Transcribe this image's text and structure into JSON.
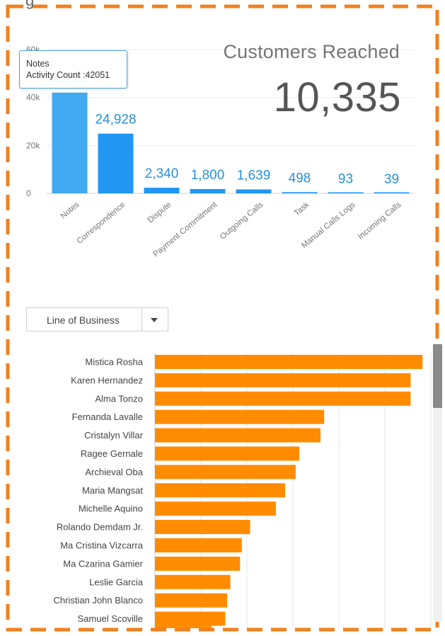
{
  "header": {
    "title_fragment": "g"
  },
  "kpi": {
    "label": "Customers Reached",
    "value": "10,335"
  },
  "tooltip": {
    "line1": "Notes",
    "line2": "Activity Count :42051"
  },
  "dropdown": {
    "label": "Line of Business"
  },
  "colors": {
    "bar_light": "#42aaf0",
    "bar_dark": "#2196f3",
    "value_text": "#2a90d8",
    "hbar": "#ff8c00",
    "frame": "#f0811f"
  },
  "chart_data": [
    {
      "type": "bar",
      "title": "",
      "categories": [
        "Notes",
        "Correspondence",
        "Dispute",
        "Payment Commitment",
        "Outgoing Calls",
        "Task",
        "Manual Calls Logs",
        "Incoming Calls"
      ],
      "values": [
        42051,
        24928,
        2340,
        1800,
        1639,
        498,
        93,
        39
      ],
      "value_labels": [
        "42,051",
        "24,928",
        "2,340",
        "1,800",
        "1,639",
        "498",
        "93",
        "39"
      ],
      "ylim": [
        0,
        60000
      ],
      "yticks": [
        0,
        20000,
        40000,
        60000
      ],
      "ytick_labels": [
        "0",
        "20k",
        "40k",
        "60k"
      ],
      "grid": true
    },
    {
      "type": "bar",
      "orientation": "horizontal",
      "title": "",
      "categories": [
        "Mistica Rosha",
        "Karen Hernandez",
        "Alma Tonzo",
        "Fernanda Lavalle",
        "Cristalyn Villar",
        "Ragee Gernale",
        "Archieval Oba",
        "Maria Mangsat",
        "Michelle Aquino",
        "Rolando Demdam Jr.",
        "Ma Cristina Vizcarra",
        "Ma Czarina Gamier",
        "Leslie Garcia",
        "Christian John Blanco",
        "Samuel Scoville"
      ],
      "values": [
        58.2,
        55.6,
        55.6,
        36.8,
        36.0,
        31.4,
        30.6,
        28.3,
        26.3,
        20.7,
        18.9,
        18.5,
        16.4,
        15.7,
        15.3
      ],
      "xlim": [
        0,
        80
      ],
      "grid": true
    }
  ]
}
